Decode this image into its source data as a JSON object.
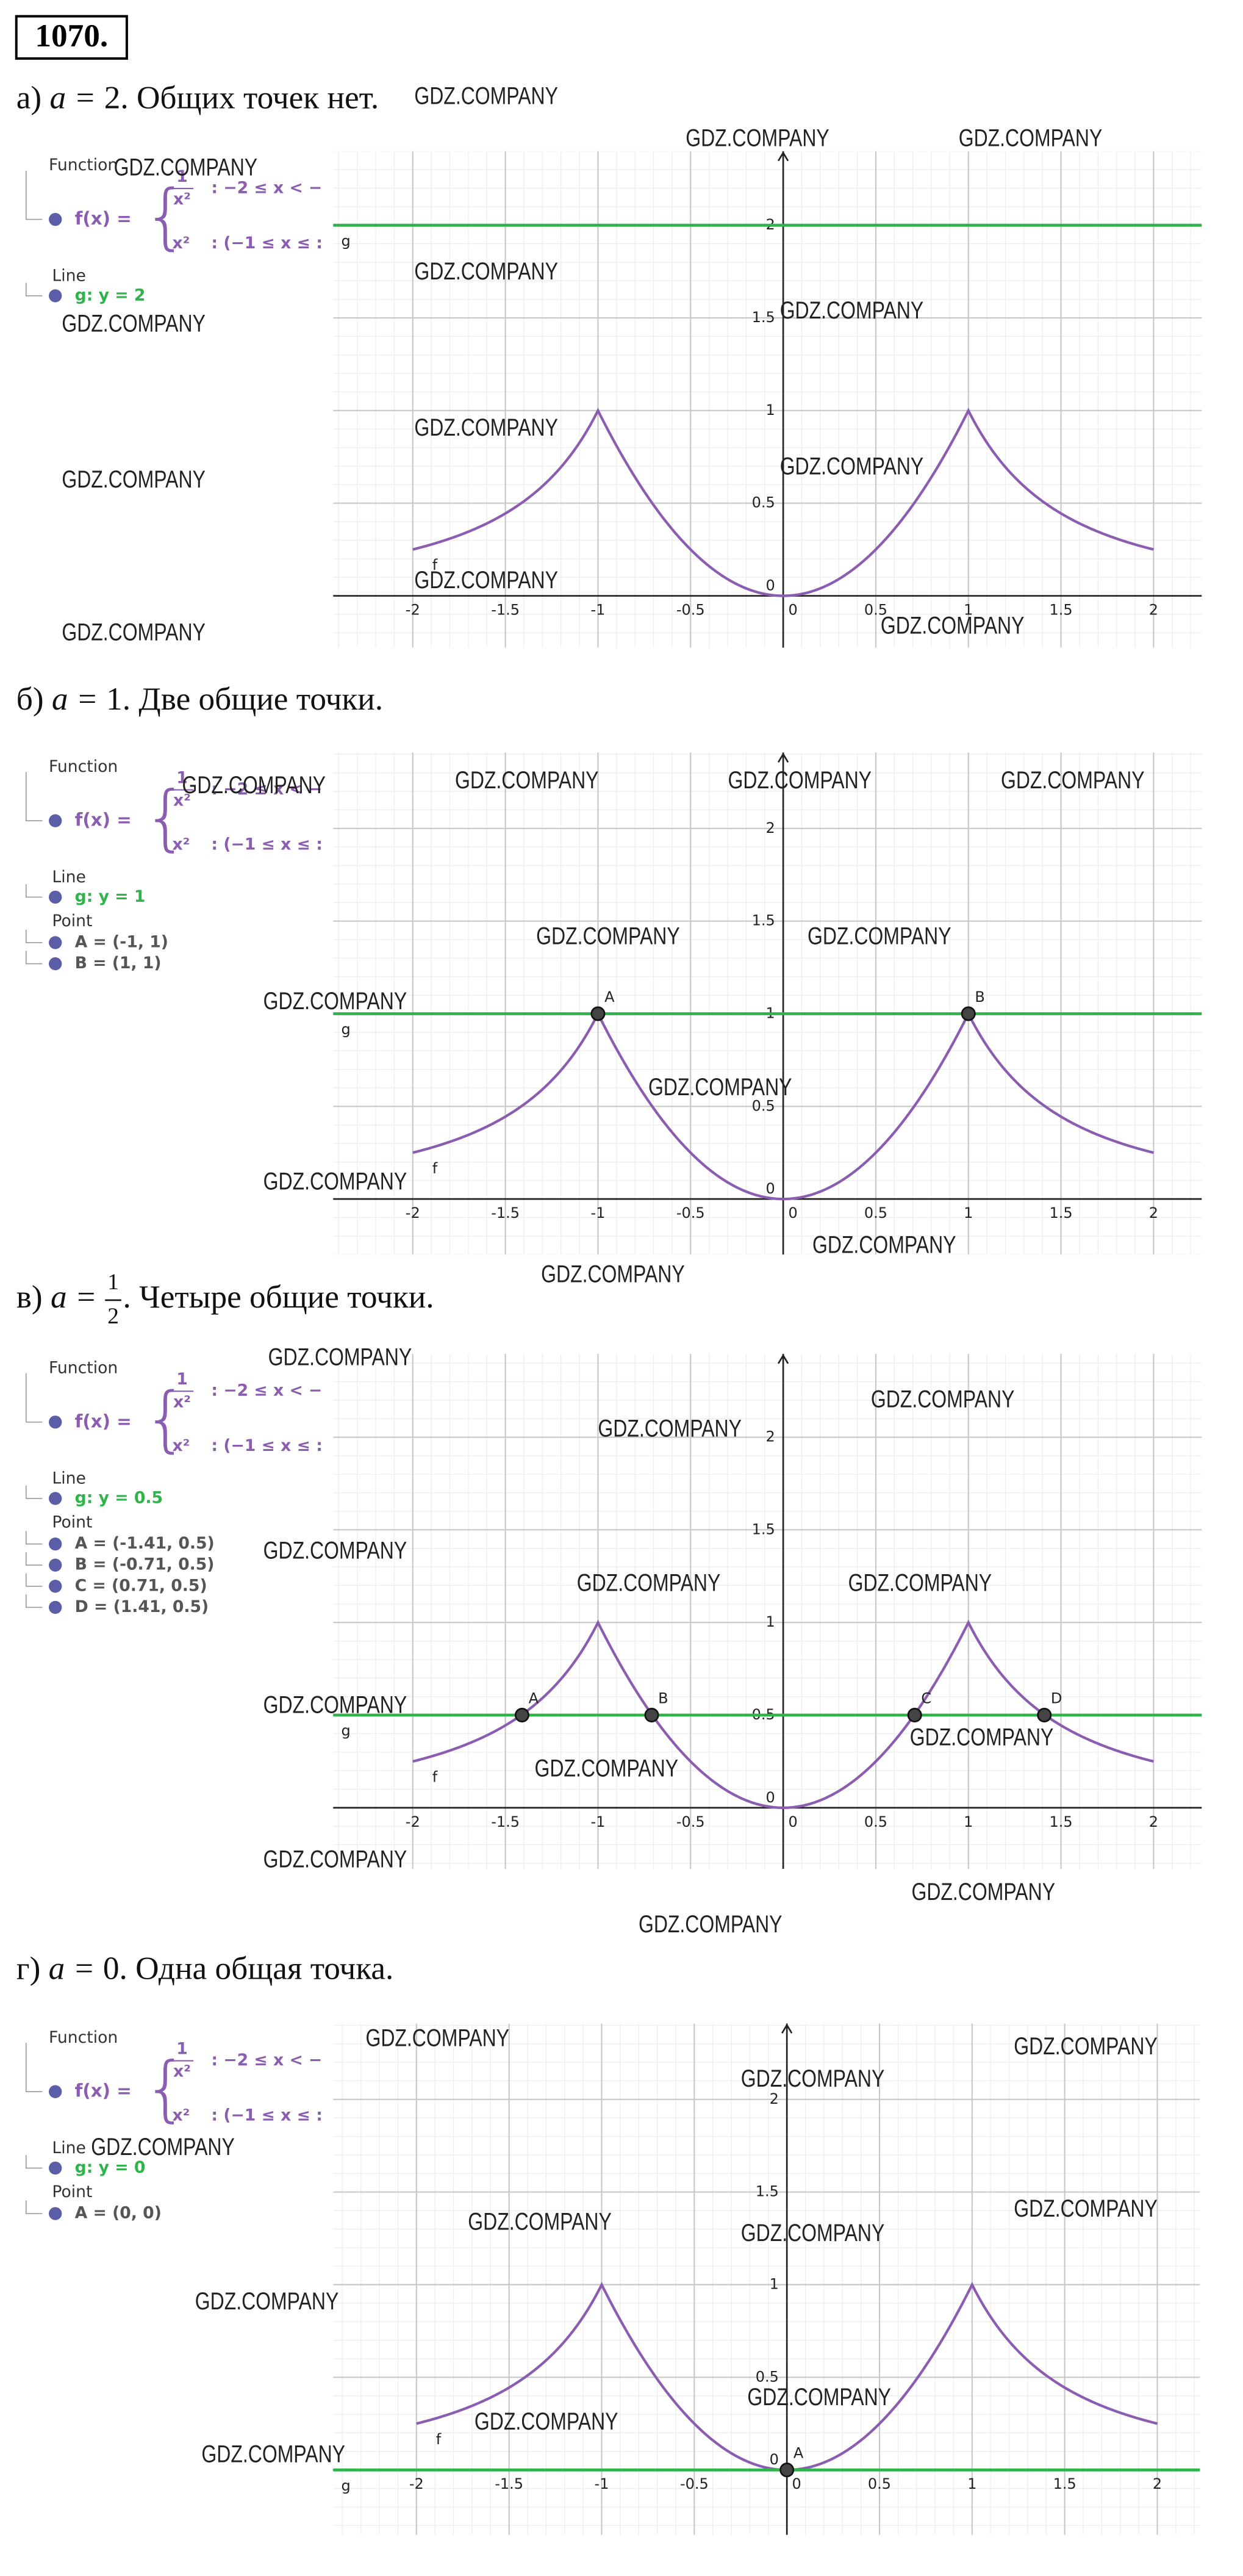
{
  "problem": "1070.",
  "watermark": "GDZ.COMPANY",
  "panel": {
    "function_heading": "Function",
    "function_name": "f(x) =",
    "piece1_num": "1",
    "piece1_den": "x²",
    "piece1_cond": ": −2 ≤ x < −",
    "piece2_expr": "x²",
    "piece2_cond": ": (−1 ≤ x ≤ :",
    "line_heading": "Line",
    "point_heading": "Point",
    "curve_label": "f",
    "line_label": "g"
  },
  "axes": {
    "xticks": [
      -2,
      -1.5,
      -1,
      -0.5,
      0,
      0.5,
      1,
      1.5,
      2
    ],
    "yticks": [
      0,
      0.5,
      1,
      1.5,
      2
    ]
  },
  "parts": [
    {
      "label": "а)",
      "eq_lhs": "a =",
      "eq_rhs": "2",
      "text": ". Общих точек нет.",
      "a": 2,
      "line_entry": "g: y = 2",
      "xlim": [
        -2.43,
        2.26
      ],
      "ylim": [
        -0.28,
        2.4
      ],
      "points": []
    },
    {
      "label": "б)",
      "eq_lhs": "a =",
      "eq_rhs": "1",
      "text": ". Две общие точки.",
      "a": 1,
      "line_entry": "g: y = 1",
      "xlim": [
        -2.43,
        2.26
      ],
      "ylim": [
        -0.3,
        2.41
      ],
      "points": [
        {
          "name": "A",
          "entry": "A = (-1, 1)",
          "x": -1,
          "y": 1
        },
        {
          "name": "B",
          "entry": "B = (1, 1)",
          "x": 1,
          "y": 1
        }
      ]
    },
    {
      "label": "в)",
      "eq_lhs": "a =",
      "eq_num": "1",
      "eq_den": "2",
      "text": ". Четыре общие точки.",
      "a": 0.5,
      "line_entry": "g: y = 0.5",
      "xlim": [
        -2.43,
        2.26
      ],
      "ylim": [
        -0.33,
        2.45
      ],
      "points": [
        {
          "name": "A",
          "entry": "A = (-1.41, 0.5)",
          "x": -1.41,
          "y": 0.5
        },
        {
          "name": "B",
          "entry": "B = (-0.71, 0.5)",
          "x": -0.71,
          "y": 0.5
        },
        {
          "name": "C",
          "entry": "C = (0.71, 0.5)",
          "x": 0.71,
          "y": 0.5
        },
        {
          "name": "D",
          "entry": "D = (1.41, 0.5)",
          "x": 1.41,
          "y": 0.5
        }
      ]
    },
    {
      "label": "г)",
      "eq_lhs": "a =",
      "eq_rhs": "0",
      "text": ". Одна общая точка.",
      "a": 0,
      "line_entry": "g: y = 0",
      "xlim": [
        -2.45,
        2.23
      ],
      "ylim": [
        -0.35,
        2.41
      ],
      "points": [
        {
          "name": "A",
          "entry": "A = (0, 0)",
          "x": 0,
          "y": 0
        }
      ]
    }
  ]
}
